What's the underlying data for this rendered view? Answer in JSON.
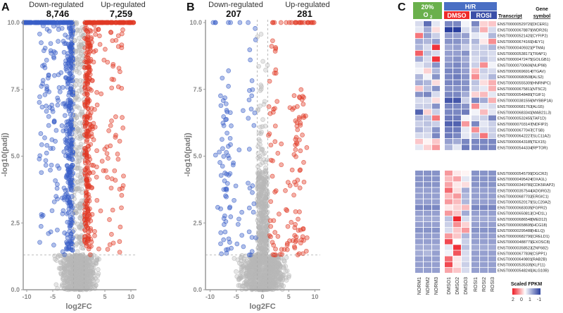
{
  "panels": {
    "a": "A",
    "b": "B",
    "c": "C"
  },
  "chart_data": [
    {
      "type": "scatter",
      "panel": "A",
      "title_left": "Down-regulated",
      "title_right": "Up-regulated",
      "down_count": "8,746",
      "up_count": "7,259",
      "xlabel": "log2FC",
      "ylabel": "-log10(padj)",
      "xlim": [
        -11,
        11
      ],
      "ylim": [
        0,
        10
      ],
      "x_ticks": [
        "-10",
        "-5",
        "0",
        "5",
        "10"
      ],
      "y_ticks": [
        "0.0",
        "2.5",
        "5.0",
        "7.5",
        "10.0"
      ],
      "thresholds": {
        "log2fc": 1,
        "neg_log10_padj": 1.3
      },
      "simulated_points": {
        "down": 520,
        "up": 480,
        "ns": 900,
        "seed": 7
      },
      "colors": {
        "down": "#3a5fc8",
        "up": "#e03a25",
        "ns": "#b8b8b8"
      }
    },
    {
      "type": "scatter",
      "panel": "B",
      "title_left": "Down-regulated",
      "title_right": "Up-regulated",
      "down_count": "207",
      "up_count": "281",
      "xlabel": "log2FC",
      "ylabel": "-log10(padj)",
      "xlim": [
        -11,
        11
      ],
      "ylim": [
        0,
        10
      ],
      "x_ticks": [
        "-10",
        "-5",
        "0",
        "5",
        "10"
      ],
      "y_ticks": [
        "0.0",
        "2.5",
        "5.0",
        "7.5",
        "10.0"
      ],
      "thresholds": {
        "log2fc": 1,
        "neg_log10_padj": 1.3
      },
      "simulated_points": {
        "down": 110,
        "up": 150,
        "ns": 1100,
        "seed": 13
      },
      "colors": {
        "down": "#3a5fc8",
        "up": "#e03a25",
        "ns": "#b8b8b8"
      }
    },
    {
      "type": "heatmap",
      "panel": "C",
      "groups": {
        "norm": "20%",
        "norm_sub": "O",
        "norm_subscript": "2",
        "hr": "H/R",
        "dmso": "DMSO",
        "rosi": "ROSI"
      },
      "group_colors": {
        "norm": "#6ab04c",
        "hr": "#4a6fc4",
        "dmso": "#ee2a2a",
        "rosi": "#3a4fa8"
      },
      "columns": [
        "NORM1",
        "NORM2",
        "NORM3",
        "DMSO1",
        "DMSO2",
        "DMSO3",
        "ROSI1",
        "ROSI2",
        "ROSI3"
      ],
      "header_transcript": "Transcript",
      "header_gene": [
        "Gene",
        "symbol"
      ],
      "legend": {
        "title": "Scaled FPKM",
        "labels": [
          "2",
          "0",
          "1",
          "-1"
        ]
      },
      "blocks": [
        [
          {
            "t": "ENST00000529720",
            "g": "(DICER1)",
            "v": [
              -0.3,
              -1.2,
              -0.2,
              -1.0,
              -1.0,
              -0.1,
              -1.0,
              0.4,
              0.5
            ]
          },
          {
            "t": "ENST00000678879",
            "g": "(WDR26)",
            "v": [
              -0.2,
              -0.7,
              0.3,
              -1.6,
              -1.6,
              -0.3,
              -0.6,
              0.7,
              -0.3
            ]
          },
          {
            "t": "ENST00000521420",
            "g": "(CYFIP2)",
            "v": [
              1.2,
              -0.8,
              -0.4,
              -0.8,
              -0.8,
              -0.8,
              -0.2,
              -0.1,
              -0.6
            ]
          },
          {
            "t": "ENST00000674160",
            "g": "(HEY1)",
            "v": [
              -0.7,
              -0.6,
              -0.8,
              -0.9,
              -0.9,
              -0.7,
              -0.6,
              0.2,
              1.0
            ]
          },
          {
            "t": "ENST00000409321",
            "g": "(PTMA)",
            "v": [
              -0.6,
              -0.3,
              1.8,
              -0.7,
              -0.8,
              -0.4,
              -0.4,
              -0.4,
              -0.6
            ]
          },
          {
            "t": "ENST00000538171",
            "g": "(TRAP1)",
            "v": [
              1.4,
              -0.5,
              -0.3,
              -0.8,
              -0.8,
              -0.9,
              -0.4,
              -0.4,
              -0.3
            ]
          },
          {
            "t": "ENST00000472475",
            "g": "(GOLGB1)",
            "v": [
              -0.7,
              -0.3,
              1.8,
              -0.8,
              -0.9,
              -0.7,
              -0.3,
              -0.5,
              -0.3
            ]
          },
          {
            "t": "ENST00000700606",
            "g": "(NUP98)",
            "v": [
              -0.2,
              -0.4,
              -0.9,
              -0.9,
              -1.0,
              -0.8,
              -0.4,
              1.0,
              -0.1
            ]
          },
          {
            "t": "ENST00000696914",
            "g": "(ITGAV)",
            "v": [
              -0.1,
              0.4,
              -0.6,
              -1.0,
              -1.0,
              -0.8,
              0.6,
              -0.4,
              -0.3
            ]
          },
          {
            "t": "ENST00000680508",
            "g": "(ALS2)",
            "v": [
              -0.6,
              -0.1,
              -0.9,
              -1.0,
              -1.1,
              -0.9,
              1.0,
              -0.3,
              -0.6
            ]
          },
          {
            "t": "ENST00000555309",
            "g": "(HNRNPC)",
            "v": [
              -0.7,
              -0.6,
              0.3,
              -1.0,
              -1.0,
              -0.9,
              -0.5,
              0.3,
              0.7
            ]
          },
          {
            "t": "ENST00000675811",
            "g": "(NT5C2)",
            "v": [
              0.5,
              -0.5,
              -0.9,
              -0.9,
              -0.9,
              -0.9,
              -0.4,
              -0.2,
              0.7
            ]
          },
          {
            "t": "ENST00000548489",
            "g": "(TGIF1)",
            "v": [
              -0.9,
              -1.0,
              -0.3,
              -1.0,
              -1.0,
              -0.7,
              0.4,
              0.6,
              -0.2
            ]
          },
          {
            "t": "ENST00000381556",
            "g": "(MYBBP1A)",
            "v": [
              -0.3,
              -0.3,
              0.3,
              -1.4,
              -1.4,
              -0.4,
              -1.0,
              -0.7,
              0.7
            ]
          },
          {
            "t": "ENST00000681763",
            "g": "(ALG5)",
            "v": [
              -0.4,
              -0.4,
              -0.9,
              -1.0,
              -1.0,
              -0.9,
              1.0,
              -0.2,
              -0.3
            ]
          },
          {
            "t": "ENST00000683341",
            "g": "(MAB21L3)",
            "v": [
              -1.3,
              0.4,
              -0.4,
              -1.0,
              -1.0,
              -1.1,
              -0.1,
              0.6,
              -0.2
            ]
          },
          {
            "t": "ENST00000532455",
            "g": "(TAF1D)",
            "v": [
              -0.6,
              -0.5,
              1.2,
              -1.1,
              -1.1,
              -0.1,
              -0.3,
              -0.4,
              -1.0
            ]
          },
          {
            "t": "ENST00000703147",
            "g": "(NDFIP2)",
            "v": [
              -0.4,
              -0.5,
              -0.4,
              -1.3,
              -1.3,
              0.9,
              -1.0,
              -0.2,
              -0.4
            ]
          },
          {
            "t": "ENST00000677047",
            "g": "(CTSB)",
            "v": [
              -0.6,
              -0.4,
              -0.9,
              -1.1,
              -1.1,
              -0.2,
              1.0,
              -0.3,
              -0.4
            ]
          },
          {
            "t": "ENST00000642227",
            "g": "(SLC11A2)",
            "v": [
              -0.3,
              -0.3,
              -1.0,
              -1.1,
              -1.0,
              -0.2,
              -0.5,
              1.2,
              -0.4
            ]
          },
          {
            "t": "ENST00000643185",
            "g": "(TEX15)",
            "v": [
              0.5,
              0.1,
              0.5,
              -0.8,
              -0.7,
              -1.0,
              -1.0,
              -1.0,
              -1.0
            ]
          },
          {
            "t": "ENST00000544334",
            "g": "(RPTOR)",
            "v": [
              -0.2,
              0.4,
              0.9,
              -0.6,
              -0.2,
              -1.1,
              -1.0,
              -1.0,
              -1.0
            ]
          }
        ],
        [
          {
            "t": "ENST00000545799",
            "g": "(DGCR2)",
            "v": [
              -0.9,
              -0.9,
              -0.9,
              0.9,
              0.2,
              0.1,
              -0.9,
              -0.9,
              -0.9
            ]
          },
          {
            "t": "ENST00000495424",
            "g": "(OXA1L)",
            "v": [
              -0.9,
              -0.9,
              -0.9,
              0.6,
              0.8,
              -0.2,
              -0.9,
              -0.9,
              -0.9
            ]
          },
          {
            "t": "ENST00000349780",
            "g": "(CDK5RAP2)",
            "v": [
              -0.9,
              -0.9,
              -0.9,
              0.8,
              0.2,
              0.3,
              -0.9,
              -0.9,
              -0.9
            ]
          },
          {
            "t": "ENST00000357544",
            "g": "(ADGRG2)",
            "v": [
              -0.8,
              -0.8,
              -0.8,
              1.3,
              0.3,
              -0.7,
              -0.8,
              -0.8,
              -0.8
            ]
          },
          {
            "t": "ENST00000687702",
            "g": "(ERGIC1)",
            "v": [
              -0.8,
              -0.8,
              -0.8,
              0.6,
              0.9,
              -0.6,
              -0.8,
              -0.8,
              -0.8
            ]
          },
          {
            "t": "ENST00000520179",
            "g": "(SLC20A2)",
            "v": [
              -0.8,
              -0.8,
              -0.8,
              0.9,
              0.6,
              -0.6,
              -0.8,
              -0.8,
              -0.8
            ]
          },
          {
            "t": "ENST00000683035",
            "g": "(FGFR2)",
            "v": [
              -1.0,
              -1.0,
              -1.0,
              0.2,
              0.4,
              0.6,
              -1.0,
              -1.0,
              -1.0
            ]
          },
          {
            "t": "ENST00000650813",
            "g": "(CHD1L)",
            "v": [
              -0.8,
              -0.8,
              -0.8,
              0.9,
              0.5,
              -0.7,
              -0.8,
              -0.8,
              -0.8
            ]
          },
          {
            "t": "ENST00000686548",
            "g": "(MED12)",
            "v": [
              -0.7,
              -0.7,
              -0.7,
              -0.5,
              1.9,
              -0.3,
              -0.7,
              -0.7,
              -0.7
            ]
          },
          {
            "t": "ENST00000658695",
            "g": "(HCG18)",
            "v": [
              -0.8,
              -0.8,
              -0.8,
              -0.4,
              1.0,
              0.4,
              -0.8,
              -0.8,
              -0.8
            ]
          },
          {
            "t": "ENST00000295488",
            "g": "(HELQ)",
            "v": [
              -0.9,
              -0.9,
              -0.9,
              -0.3,
              0.5,
              0.9,
              -0.9,
              -0.9,
              -0.9
            ]
          },
          {
            "t": "ENST00000682790",
            "g": "(CRELD1)",
            "v": [
              -0.8,
              -0.8,
              -0.8,
              0.9,
              0.5,
              -0.6,
              -0.8,
              -0.8,
              -0.8
            ]
          },
          {
            "t": "ENST00000488779",
            "g": "(EXOSC8)",
            "v": [
              -0.8,
              -0.8,
              -0.8,
              1.6,
              0.0,
              -0.4,
              -0.8,
              -0.8,
              -0.8
            ]
          },
          {
            "t": "ENST00000358523",
            "g": "(ZNF682)",
            "v": [
              -0.7,
              -0.7,
              -0.7,
              -0.2,
              1.8,
              -0.5,
              -0.7,
              -0.7,
              -0.7
            ]
          },
          {
            "t": "ENST00000677836",
            "g": "(CSPP1)",
            "v": [
              -0.7,
              -0.6,
              -0.8,
              -0.1,
              1.5,
              -0.3,
              -0.8,
              -0.8,
              -0.8
            ]
          },
          {
            "t": "ENST00000649801",
            "g": "(RAB2B)",
            "v": [
              -0.8,
              -0.8,
              -0.8,
              1.3,
              0.2,
              -0.3,
              -0.8,
              -0.8,
              -0.8
            ]
          },
          {
            "t": "ENST00000535335",
            "g": "(KLF11)",
            "v": [
              -0.8,
              -0.8,
              -0.8,
              1.6,
              0.2,
              -0.4,
              -0.8,
              -0.8,
              -0.8
            ]
          },
          {
            "t": "ENST00000548240",
            "g": "(ALG10B)",
            "v": [
              -0.8,
              -0.8,
              -0.8,
              0.8,
              0.5,
              -0.3,
              -0.8,
              -0.8,
              -0.8
            ]
          }
        ]
      ]
    }
  ]
}
